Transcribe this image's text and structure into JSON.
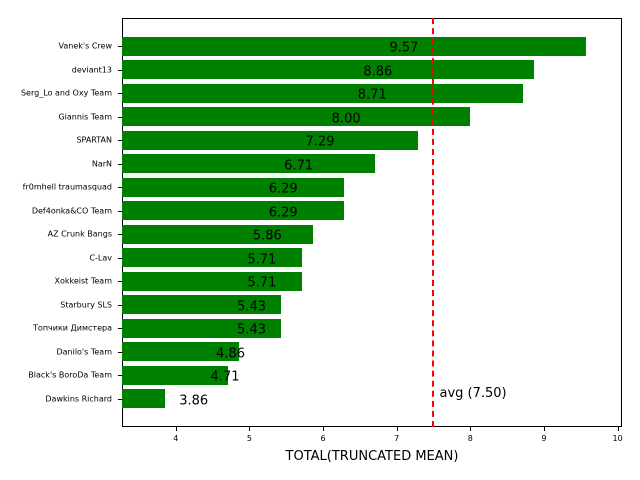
{
  "chart_data": {
    "type": "bar",
    "orientation": "horizontal",
    "title": "",
    "xlabel": "TOTAL(TRUNCATED MEAN)",
    "ylabel": "",
    "xlim": [
      3.27,
      10.06
    ],
    "xticks": [
      "4",
      "5",
      "6",
      "7",
      "8",
      "9",
      "10"
    ],
    "grid": false,
    "bar_color": "#008000",
    "categories": [
      "Vanek's Crew",
      "deviant13",
      "Serg_Lo and Oxy Team",
      "Giannis Team",
      "SPARTAN",
      "NarN",
      "fr0mhell traumasquad",
      "Def4onka&CO Team",
      "AZ Crunk Bangs",
      "C-Lav",
      "Xokkeist Team",
      "Starbury SLS",
      "Топчики Димстера",
      "Danilo's Team",
      "Black's BoroDa Team",
      "Dawkins Richard"
    ],
    "values": [
      9.57,
      8.86,
      8.71,
      8.0,
      7.29,
      6.71,
      6.29,
      6.29,
      5.86,
      5.71,
      5.71,
      5.43,
      5.43,
      4.86,
      4.71,
      3.86
    ],
    "value_labels": [
      "9.57",
      "8.86",
      "8.71",
      "8.00",
      "7.29",
      "6.71",
      "6.29",
      "6.29",
      "5.86",
      "5.71",
      "5.71",
      "5.43",
      "5.43",
      "4.86",
      "4.71",
      "3.86"
    ],
    "annotations": [
      {
        "type": "vline",
        "x": 7.5,
        "style": "dashed",
        "color": "#ff0000",
        "text": "avg (7.50)"
      }
    ]
  }
}
